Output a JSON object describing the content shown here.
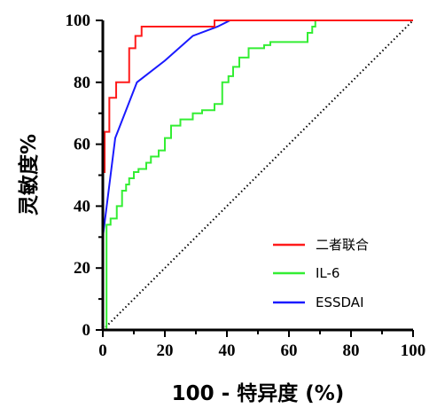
{
  "chart_data": {
    "type": "line",
    "title": "",
    "xlabel": "100 - 特异度 (%)",
    "ylabel": "灵敏度%",
    "xlim": [
      0,
      100
    ],
    "ylim": [
      0,
      100
    ],
    "xticks": [
      "0",
      "20",
      "40",
      "60",
      "80",
      "100"
    ],
    "yticks": [
      "0",
      "20",
      "40",
      "60",
      "80",
      "100"
    ],
    "grid": false,
    "legend_position": "bottom-right",
    "reference_line": {
      "style": "dotted",
      "x": [
        0,
        100
      ],
      "y": [
        0,
        100
      ]
    },
    "series": [
      {
        "name": "二者联合",
        "color": "#ff1a1a",
        "x": [
          0,
          0,
          0.6,
          0.6,
          2.1,
          2.1,
          4.3,
          4.3,
          8.5,
          8.5,
          10.5,
          10.5,
          12.5,
          12.5,
          36,
          36,
          100
        ],
        "y": [
          0,
          51,
          51,
          64,
          64,
          75,
          75,
          80,
          80,
          91,
          91,
          95,
          95,
          98,
          98,
          100,
          100
        ]
      },
      {
        "name": "IL-6",
        "color": "#33ee33",
        "x": [
          0,
          1.2,
          1.2,
          2.5,
          2.5,
          4.5,
          4.5,
          6.2,
          6.2,
          7.5,
          7.5,
          8.5,
          8.5,
          10,
          10,
          11.5,
          11.5,
          14,
          14,
          15.5,
          15.5,
          18,
          18,
          20,
          20,
          22,
          22,
          25,
          25,
          29,
          29,
          32,
          32,
          36,
          36,
          38.5,
          38.5,
          40.5,
          40.5,
          42,
          42,
          44,
          44,
          47,
          47,
          52,
          52,
          54,
          54,
          66,
          66,
          67.5,
          67.5,
          68.5,
          68.5,
          100
        ],
        "y": [
          0,
          0,
          34,
          34,
          36,
          36,
          40,
          40,
          45,
          45,
          47,
          47,
          49,
          49,
          51,
          51,
          52,
          52,
          54,
          54,
          56,
          56,
          58,
          58,
          62,
          62,
          66,
          66,
          68,
          68,
          70,
          70,
          71,
          71,
          73,
          73,
          80,
          80,
          82,
          82,
          85,
          85,
          88,
          88,
          91,
          91,
          92,
          92,
          93,
          93,
          96,
          96,
          98,
          98,
          100,
          100
        ]
      },
      {
        "name": "ESSDAI",
        "color": "#1a1aff",
        "x": [
          0,
          1,
          2.5,
          4,
          11,
          20,
          29,
          37,
          41,
          100
        ],
        "y": [
          30,
          38,
          50,
          62,
          80,
          87,
          95,
          98,
          100,
          100
        ]
      }
    ]
  }
}
